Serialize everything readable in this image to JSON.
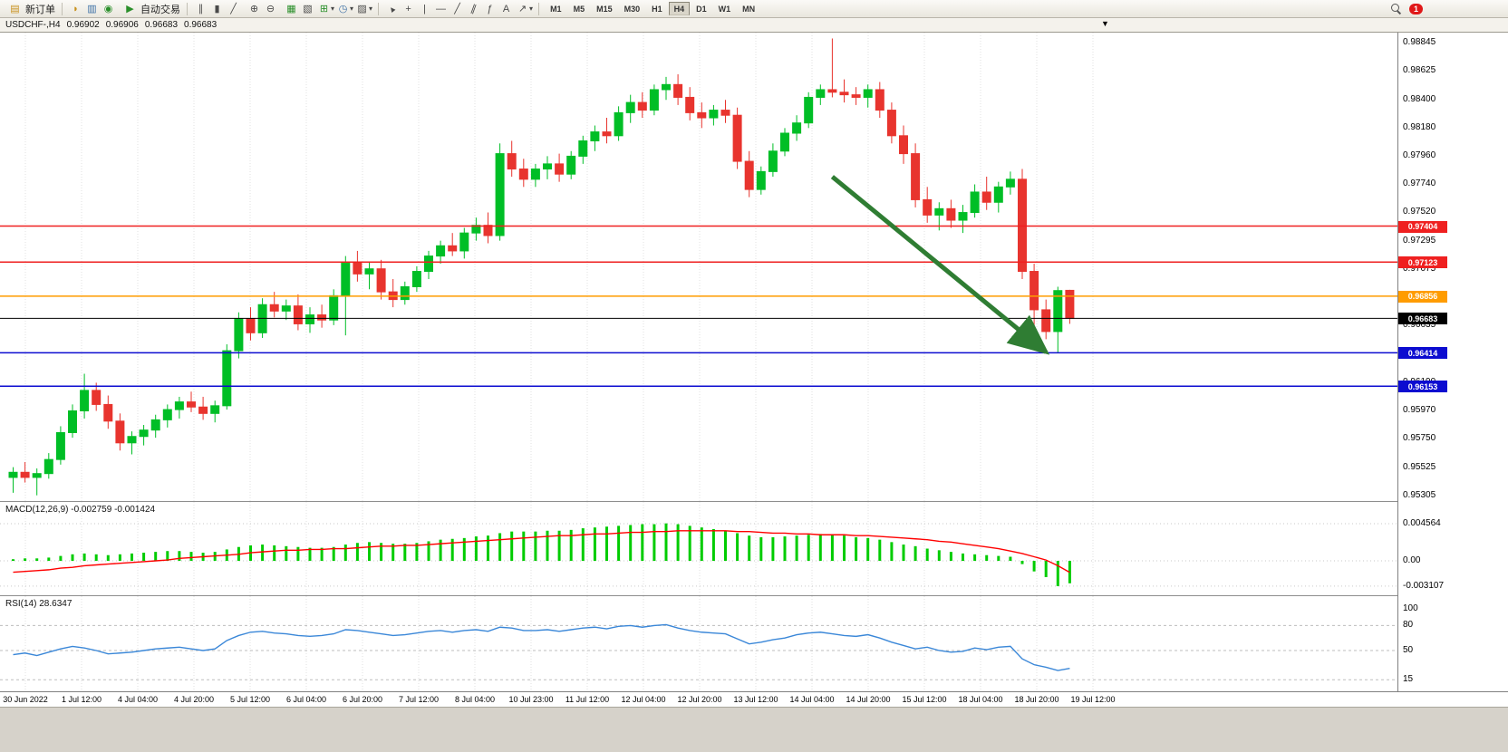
{
  "toolbar": {
    "new_order_label": "新订单",
    "autotrading_label": "自动交易",
    "timeframes": [
      "M1",
      "M5",
      "M15",
      "M30",
      "H1",
      "H4",
      "D1",
      "W1",
      "MN"
    ],
    "active_timeframe": "H4",
    "notification_count": "1"
  },
  "icons": {
    "new_order": "▤",
    "horn": "◗",
    "book": "▥",
    "globe": "◉",
    "play": "▶",
    "bar_chart": "∥",
    "candles": "▮",
    "line_chart": "╱",
    "zoom_in": "⊕",
    "zoom_out": "⊖",
    "new_chart": "▦",
    "layout": "▧",
    "indicators": "⊞",
    "periods": "◷",
    "templates": "▨",
    "cursor": "▲",
    "crosshair": "+",
    "vline": "|",
    "hline": "—",
    "trendline": "╱",
    "channel": "∥",
    "fibo": "ƒ",
    "text": "A",
    "arrows": "↗",
    "caret": "▾",
    "shift_marker": "▼"
  },
  "chart_header": {
    "symbol_period": "USDCHF-,H4",
    "open": "0.96902",
    "high": "0.96906",
    "low": "0.96683",
    "close": "0.96683"
  },
  "price_axis_labels": [
    "0.98845",
    "0.98625",
    "0.98400",
    "0.98180",
    "0.97960",
    "0.97740",
    "0.97520",
    "0.97295",
    "0.97075",
    "0.96855",
    "0.96635",
    "0.96410",
    "0.96190",
    "0.95970",
    "0.95750",
    "0.95525",
    "0.95305"
  ],
  "hlines": [
    {
      "price": 0.97404,
      "label": "0.97404",
      "color": "#ef2020",
      "width": 1.5
    },
    {
      "price": 0.97123,
      "label": "0.97123",
      "color": "#ef2020",
      "width": 1.5
    },
    {
      "price": 0.96856,
      "label": "0.96856",
      "color": "#ff9c00",
      "width": 1.5
    },
    {
      "price": 0.96683,
      "label": "0.96683",
      "color": "#000000",
      "width": 1,
      "current": true
    },
    {
      "price": 0.96414,
      "label": "0.96414",
      "color": "#0c0cd0",
      "width": 1.5
    },
    {
      "price": 0.96153,
      "label": "0.96153",
      "color": "#0c0cd0",
      "width": 1.5
    }
  ],
  "arrow": {
    "from": {
      "bar": 69,
      "price": 0.9779
    },
    "to": {
      "bar": 87,
      "price": 0.9642
    },
    "color": "#2F7D33"
  },
  "chart_data": [
    {
      "type": "candlestick",
      "title": "USDCHF-,H4",
      "timeframe": "H4",
      "ylim": [
        0.95305,
        0.98845
      ],
      "colors": {
        "bull": "#00BE26",
        "bear": "#E8342E"
      },
      "x_labels": [
        "30 Jun 2022",
        "1 Jul 12:00",
        "4 Jul 04:00",
        "4 Jul 20:00",
        "5 Jul 12:00",
        "6 Jul 04:00",
        "6 Jul 20:00",
        "7 Jul 12:00",
        "8 Jul 04:00",
        "10 Jul 23:00",
        "11 Jul 12:00",
        "12 Jul 04:00",
        "12 Jul 20:00",
        "13 Jul 12:00",
        "14 Jul 04:00",
        "14 Jul 20:00",
        "15 Jul 12:00",
        "18 Jul 04:00",
        "18 Jul 20:00",
        "19 Jul 12:00"
      ],
      "candles": [
        [
          0.9544,
          0.9552,
          0.9532,
          0.9548
        ],
        [
          0.9548,
          0.9556,
          0.954,
          0.9544
        ],
        [
          0.9544,
          0.9551,
          0.953,
          0.9547
        ],
        [
          0.9547,
          0.9563,
          0.9543,
          0.9558
        ],
        [
          0.9558,
          0.9584,
          0.9554,
          0.9579
        ],
        [
          0.9579,
          0.9601,
          0.9575,
          0.9596
        ],
        [
          0.9596,
          0.9625,
          0.959,
          0.9612
        ],
        [
          0.9612,
          0.9618,
          0.9596,
          0.9601
        ],
        [
          0.9601,
          0.9608,
          0.9582,
          0.9588
        ],
        [
          0.9588,
          0.9594,
          0.9565,
          0.9571
        ],
        [
          0.9571,
          0.958,
          0.9562,
          0.9576
        ],
        [
          0.9576,
          0.9585,
          0.9569,
          0.9581
        ],
        [
          0.9581,
          0.9593,
          0.9575,
          0.9589
        ],
        [
          0.9589,
          0.9601,
          0.9583,
          0.9597
        ],
        [
          0.9597,
          0.9607,
          0.959,
          0.9603
        ],
        [
          0.9603,
          0.9611,
          0.9595,
          0.9599
        ],
        [
          0.9599,
          0.9607,
          0.9589,
          0.9594
        ],
        [
          0.9594,
          0.9604,
          0.9587,
          0.96
        ],
        [
          0.96,
          0.9648,
          0.9597,
          0.9643
        ],
        [
          0.9643,
          0.9673,
          0.9637,
          0.9668
        ],
        [
          0.9668,
          0.9677,
          0.9651,
          0.9657
        ],
        [
          0.9657,
          0.9684,
          0.9653,
          0.9679
        ],
        [
          0.9679,
          0.9689,
          0.9669,
          0.9674
        ],
        [
          0.9674,
          0.9683,
          0.9667,
          0.9678
        ],
        [
          0.9678,
          0.9687,
          0.9659,
          0.9664
        ],
        [
          0.9664,
          0.9677,
          0.9657,
          0.9671
        ],
        [
          0.9671,
          0.9679,
          0.9661,
          0.9667
        ],
        [
          0.9667,
          0.9691,
          0.9663,
          0.9686
        ],
        [
          0.9686,
          0.9717,
          0.9655,
          0.9712
        ],
        [
          0.9712,
          0.9721,
          0.9697,
          0.9703
        ],
        [
          0.9703,
          0.9712,
          0.9691,
          0.9707
        ],
        [
          0.9707,
          0.9714,
          0.9683,
          0.9689
        ],
        [
          0.9689,
          0.9699,
          0.9677,
          0.9683
        ],
        [
          0.9683,
          0.9697,
          0.9679,
          0.9693
        ],
        [
          0.9693,
          0.9709,
          0.9689,
          0.9705
        ],
        [
          0.9705,
          0.9721,
          0.9699,
          0.9717
        ],
        [
          0.9717,
          0.9729,
          0.9711,
          0.9725
        ],
        [
          0.9725,
          0.9735,
          0.9717,
          0.9721
        ],
        [
          0.9721,
          0.9739,
          0.9715,
          0.9735
        ],
        [
          0.9735,
          0.9747,
          0.9729,
          0.9741
        ],
        [
          0.9741,
          0.9751,
          0.9727,
          0.9733
        ],
        [
          0.9733,
          0.9805,
          0.9729,
          0.9797
        ],
        [
          0.9797,
          0.9807,
          0.9779,
          0.9785
        ],
        [
          0.9785,
          0.9793,
          0.9771,
          0.9777
        ],
        [
          0.9777,
          0.9789,
          0.9771,
          0.9785
        ],
        [
          0.9785,
          0.9795,
          0.9777,
          0.9789
        ],
        [
          0.9789,
          0.9797,
          0.9775,
          0.9781
        ],
        [
          0.9781,
          0.9799,
          0.9777,
          0.9795
        ],
        [
          0.9795,
          0.9811,
          0.9789,
          0.9807
        ],
        [
          0.9807,
          0.9819,
          0.9799,
          0.9814
        ],
        [
          0.9814,
          0.9825,
          0.9805,
          0.9811
        ],
        [
          0.9811,
          0.9834,
          0.9807,
          0.9829
        ],
        [
          0.9829,
          0.9843,
          0.9821,
          0.9837
        ],
        [
          0.9837,
          0.9845,
          0.9825,
          0.9831
        ],
        [
          0.9831,
          0.9851,
          0.9827,
          0.9847
        ],
        [
          0.9847,
          0.9857,
          0.9839,
          0.9851
        ],
        [
          0.9851,
          0.9859,
          0.9835,
          0.9841
        ],
        [
          0.9841,
          0.9849,
          0.9823,
          0.9829
        ],
        [
          0.9829,
          0.9837,
          0.9817,
          0.9825
        ],
        [
          0.9825,
          0.9835,
          0.9819,
          0.9831
        ],
        [
          0.9831,
          0.9839,
          0.9821,
          0.9827
        ],
        [
          0.9827,
          0.9833,
          0.9785,
          0.9791
        ],
        [
          0.9791,
          0.9799,
          0.9763,
          0.9769
        ],
        [
          0.9769,
          0.9787,
          0.9765,
          0.9783
        ],
        [
          0.9783,
          0.9805,
          0.9779,
          0.9799
        ],
        [
          0.9799,
          0.9817,
          0.9795,
          0.9813
        ],
        [
          0.9813,
          0.9827,
          0.9807,
          0.9821
        ],
        [
          0.9821,
          0.9845,
          0.9817,
          0.9841
        ],
        [
          0.9841,
          0.9851,
          0.9835,
          0.9847
        ],
        [
          0.9847,
          0.9887,
          0.9841,
          0.9845
        ],
        [
          0.9845,
          0.9855,
          0.9837,
          0.9843
        ],
        [
          0.9843,
          0.9849,
          0.9835,
          0.9841
        ],
        [
          0.9841,
          0.9851,
          0.9833,
          0.9847
        ],
        [
          0.9847,
          0.9853,
          0.9825,
          0.9831
        ],
        [
          0.9831,
          0.9837,
          0.9805,
          0.9811
        ],
        [
          0.9811,
          0.9819,
          0.9789,
          0.9797
        ],
        [
          0.9797,
          0.9805,
          0.9755,
          0.9761
        ],
        [
          0.9761,
          0.9771,
          0.9743,
          0.9749
        ],
        [
          0.9749,
          0.9759,
          0.9737,
          0.9754
        ],
        [
          0.9754,
          0.9761,
          0.9739,
          0.9745
        ],
        [
          0.9745,
          0.9757,
          0.9735,
          0.9751
        ],
        [
          0.9751,
          0.9773,
          0.9747,
          0.9767
        ],
        [
          0.9767,
          0.9779,
          0.9753,
          0.9759
        ],
        [
          0.9759,
          0.9775,
          0.9751,
          0.9771
        ],
        [
          0.9771,
          0.9783,
          0.9765,
          0.9777
        ],
        [
          0.9777,
          0.9785,
          0.9699,
          0.9705
        ],
        [
          0.9705,
          0.9711,
          0.9662,
          0.9675
        ],
        [
          0.9675,
          0.9683,
          0.9652,
          0.9658
        ],
        [
          0.9658,
          0.9693,
          0.9641,
          0.969
        ],
        [
          0.96902,
          0.96906,
          0.9664,
          0.96683
        ]
      ]
    },
    {
      "type": "bar",
      "name": "MACD(12,26,9)",
      "main_value": "-0.002759",
      "signal_value": "-0.001424",
      "ylim": [
        -0.0036,
        0.0052
      ],
      "axis_labels": [
        "0.004564",
        "0.00",
        "-0.003107"
      ],
      "axis_values": [
        0.004564,
        0,
        -0.003107
      ],
      "colors": {
        "histogram": "#00CC00",
        "signal": "#FF0000"
      },
      "histogram": [
        0.0002,
        0.0003,
        0.0003,
        0.0004,
        0.0006,
        0.0008,
        0.0009,
        0.0008,
        0.0007,
        0.0008,
        0.0009,
        0.001,
        0.0011,
        0.0012,
        0.0012,
        0.0011,
        0.001,
        0.0011,
        0.0014,
        0.0017,
        0.0019,
        0.002,
        0.0019,
        0.0018,
        0.0017,
        0.0016,
        0.0016,
        0.0017,
        0.002,
        0.0022,
        0.0023,
        0.0022,
        0.0021,
        0.0021,
        0.0022,
        0.0024,
        0.0026,
        0.0027,
        0.0028,
        0.003,
        0.0031,
        0.0034,
        0.0036,
        0.0036,
        0.0036,
        0.0037,
        0.0037,
        0.0038,
        0.004,
        0.0041,
        0.0042,
        0.0043,
        0.0044,
        0.0045,
        0.0045,
        0.0046,
        0.0045,
        0.0043,
        0.0041,
        0.0039,
        0.0037,
        0.0034,
        0.0031,
        0.0029,
        0.0029,
        0.003,
        0.0031,
        0.0032,
        0.0033,
        0.0032,
        0.0031,
        0.0029,
        0.0028,
        0.0026,
        0.0023,
        0.002,
        0.0018,
        0.0015,
        0.0013,
        0.0011,
        0.0009,
        0.0008,
        0.0007,
        0.0006,
        0.0005,
        -0.0004,
        -0.0013,
        -0.002,
        -0.003107,
        -0.002759
      ],
      "signal": [
        -0.0014,
        -0.0013,
        -0.0012,
        -0.0011,
        -0.0009,
        -0.0008,
        -0.0006,
        -0.0005,
        -0.0004,
        -0.0003,
        -0.0002,
        -0.0001,
        0.0,
        0.0001,
        0.0003,
        0.0004,
        0.0005,
        0.0006,
        0.0007,
        0.0008,
        0.001,
        0.0011,
        0.0012,
        0.0013,
        0.0013,
        0.0014,
        0.0014,
        0.0015,
        0.0015,
        0.0016,
        0.0017,
        0.0018,
        0.0018,
        0.0019,
        0.0019,
        0.002,
        0.0021,
        0.0022,
        0.0023,
        0.0024,
        0.0025,
        0.0026,
        0.0027,
        0.0028,
        0.0029,
        0.003,
        0.0031,
        0.0031,
        0.0032,
        0.0033,
        0.0033,
        0.0034,
        0.0035,
        0.0035,
        0.0036,
        0.0036,
        0.0037,
        0.0037,
        0.0037,
        0.0037,
        0.0037,
        0.0036,
        0.0036,
        0.0035,
        0.0034,
        0.0034,
        0.0033,
        0.0033,
        0.0032,
        0.0032,
        0.0032,
        0.0031,
        0.0031,
        0.003,
        0.0029,
        0.0028,
        0.0027,
        0.0026,
        0.0024,
        0.0023,
        0.0021,
        0.0019,
        0.0017,
        0.0015,
        0.0012,
        0.0009,
        0.0005,
        0.0001,
        -0.0006,
        -0.001424
      ]
    },
    {
      "type": "line",
      "name": "RSI(14)",
      "value": "28.6347",
      "ylim": [
        0,
        100
      ],
      "levels": [
        80,
        50,
        15
      ],
      "axis_labels": [
        "100",
        "80",
        "50",
        "15"
      ],
      "axis_values": [
        100,
        80,
        50,
        15
      ],
      "color": "#3A87D8",
      "values": [
        45,
        47,
        44,
        48,
        52,
        55,
        53,
        50,
        46,
        47,
        48,
        50,
        52,
        53,
        54,
        52,
        50,
        52,
        62,
        68,
        72,
        73,
        71,
        70,
        68,
        67,
        68,
        70,
        75,
        74,
        72,
        70,
        68,
        69,
        71,
        73,
        74,
        72,
        74,
        75,
        73,
        78,
        77,
        74,
        74,
        75,
        73,
        75,
        77,
        78,
        76,
        79,
        80,
        78,
        80,
        81,
        77,
        74,
        72,
        71,
        70,
        64,
        58,
        60,
        63,
        65,
        69,
        71,
        72,
        70,
        68,
        67,
        69,
        65,
        60,
        56,
        52,
        54,
        50,
        48,
        49,
        53,
        51,
        54,
        55,
        40,
        33,
        30,
        26,
        28.63
      ]
    }
  ]
}
